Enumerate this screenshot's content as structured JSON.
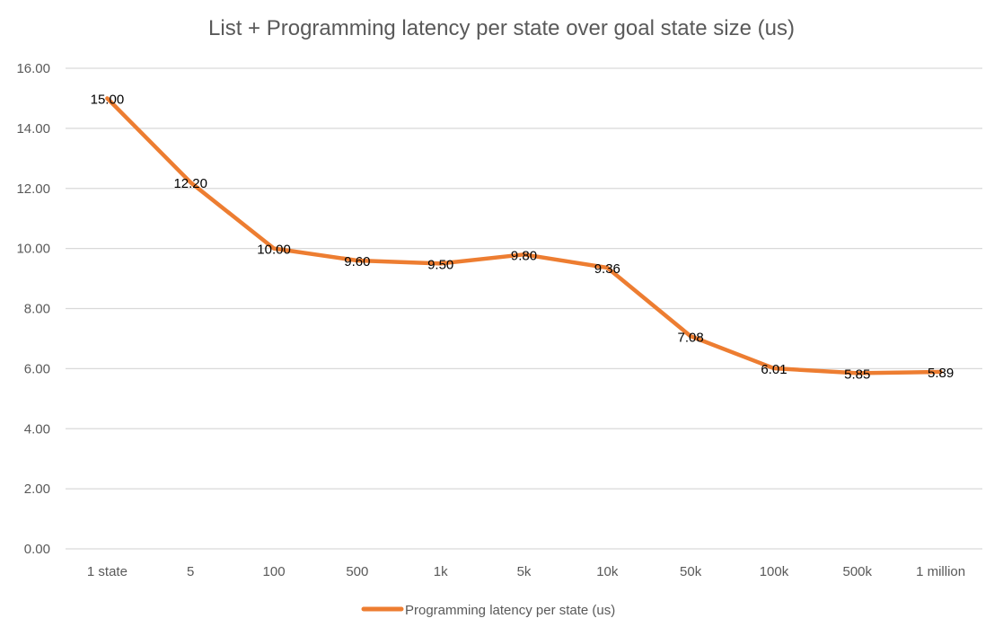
{
  "chart_data": {
    "type": "line",
    "title": "List + Programming latency per state over goal state size (us)",
    "xlabel": "",
    "ylabel": "",
    "categories": [
      "1 state",
      "5",
      "100",
      "500",
      "1k",
      "5k",
      "10k",
      "50k",
      "100k",
      "500k",
      "1 million"
    ],
    "series": [
      {
        "name": "Programming latency per state (us)",
        "color": "#ed7d31",
        "values": [
          15.0,
          12.2,
          10.0,
          9.6,
          9.5,
          9.8,
          9.36,
          7.08,
          6.01,
          5.85,
          5.89
        ],
        "labels": [
          "15.00",
          "12.20",
          "10.00",
          "9.60",
          "9.50",
          "9.80",
          "9.36",
          "7.08",
          "6.01",
          "5.85",
          "5.89"
        ]
      }
    ],
    "ylim": [
      0,
      16
    ],
    "yticks": [
      "0.00",
      "2.00",
      "4.00",
      "6.00",
      "8.00",
      "10.00",
      "12.00",
      "14.00",
      "16.00"
    ],
    "ytick_values": [
      0,
      2,
      4,
      6,
      8,
      10,
      12,
      14,
      16
    ],
    "grid": true,
    "legend_position": "bottom"
  }
}
